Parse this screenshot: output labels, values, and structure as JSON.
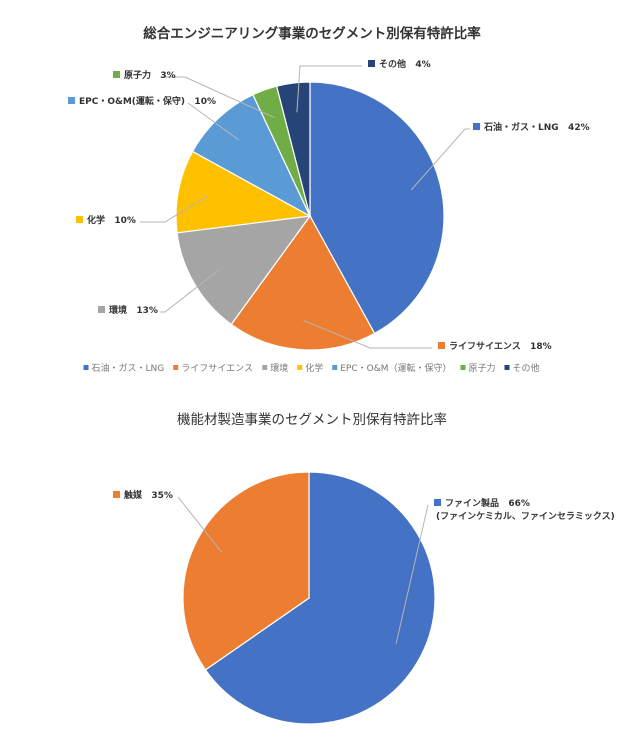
{
  "chart_data": [
    {
      "type": "pie",
      "title": "総合エンジニアリング事業のセグメント別保有特許比率",
      "categories": [
        "石油・ガス・LNG",
        "ライフサイエンス",
        "環境",
        "化学",
        "EPC・O&M(運転・保守)",
        "原子力",
        "その他"
      ],
      "values": [
        42,
        18,
        13,
        10,
        10,
        3,
        4
      ],
      "value_labels": [
        "42%",
        "18%",
        "13%",
        "10%",
        "10%",
        "3%",
        "4%"
      ],
      "data_label_names": [
        "石油・ガス・LNG",
        "ライフサイエンス",
        "環境",
        "化学",
        "EPC・O&M(運転・保守)",
        "原子力",
        "その他"
      ],
      "legend_labels": [
        "石油・ガス・LNG",
        "ライフサイエンス",
        "環境",
        "化学",
        "EPC・O&M（運転・保守）",
        "原子力",
        "その他"
      ],
      "colors": [
        "#4472C4",
        "#ED7D31",
        "#A5A5A5",
        "#FFC000",
        "#5B9BD5",
        "#70AD47",
        "#264478"
      ],
      "legend": "bottom"
    },
    {
      "type": "pie",
      "title": "機能材製造事業のセグメント別保有特許比率",
      "categories": [
        "ファイン製品",
        "触媒"
      ],
      "values": [
        66,
        35
      ],
      "value_labels": [
        "66%",
        "35%"
      ],
      "data_label_names": [
        "ファイン製品",
        "触媒"
      ],
      "data_label_sublines": [
        "(ファインケミカル、ファインセラミックス)",
        ""
      ],
      "colors": [
        "#4472C4",
        "#ED7D31"
      ],
      "legend": "none"
    }
  ]
}
